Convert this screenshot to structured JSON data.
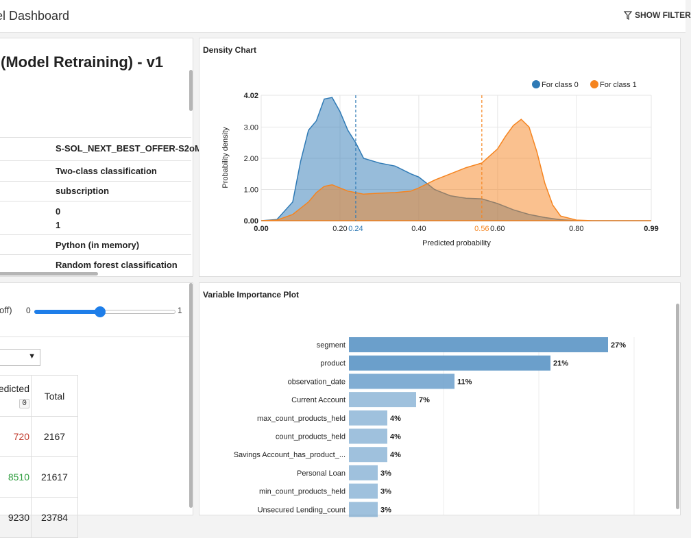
{
  "header": {
    "title": "el Dashboard",
    "filters_label": "SHOW FILTER"
  },
  "model_panel": {
    "title": "(Model Retraining) - v1",
    "rows": [
      "S-SOL_NEXT_BEST_OFFER-S2oM",
      "Two-class classification",
      "subscription",
      "0",
      "1",
      "Python (in memory)",
      "Random forest classification"
    ]
  },
  "density_panel": {
    "title": "Density Chart",
    "legend": [
      "For class 0",
      "For class 1"
    ],
    "ylabel": "Probability density",
    "xlabel": "Predicted probability",
    "xticks": [
      "0.00",
      "0.20",
      "0.40",
      "0.60",
      "0.80",
      "0.99"
    ],
    "yticks": [
      "0.00",
      "1.00",
      "2.00",
      "3.00",
      "4.02"
    ],
    "markers": [
      "0.24",
      "0.56"
    ]
  },
  "metrics_panel": {
    "cutoff_label": "off)",
    "slider_min": "0",
    "slider_max": "1",
    "table": {
      "header_predicted": "edicted",
      "header_badge": "0",
      "header_total": "Total",
      "rows": [
        {
          "pred": "720",
          "total": "2167"
        },
        {
          "pred": "8510",
          "total": "21617"
        },
        {
          "pred": "9230",
          "total": "23784"
        }
      ]
    }
  },
  "varimp_panel": {
    "title": "Variable Importance Plot"
  },
  "colors": {
    "class0": "#2f7ab5",
    "class1": "#f5841f",
    "bar": "#6b9fcb",
    "link": "#1e7ee9",
    "red": "#c0392b",
    "green": "#2e9d3e"
  },
  "chart_data": [
    {
      "type": "area",
      "title": "Density Chart",
      "xlabel": "Predicted probability",
      "ylabel": "Probability density",
      "xlim": [
        0,
        0.99
      ],
      "ylim": [
        0,
        4.02
      ],
      "legend": "top-right",
      "grid": true,
      "vlines": [
        0.24,
        0.56
      ],
      "series": [
        {
          "name": "For class 0",
          "x": [
            0.0,
            0.04,
            0.08,
            0.1,
            0.12,
            0.14,
            0.16,
            0.18,
            0.2,
            0.22,
            0.24,
            0.26,
            0.3,
            0.34,
            0.38,
            0.4,
            0.44,
            0.48,
            0.52,
            0.56,
            0.6,
            0.64,
            0.68,
            0.72,
            0.76,
            0.8,
            0.84,
            0.99
          ],
          "y": [
            0,
            0.04,
            0.6,
            1.9,
            2.9,
            3.2,
            3.9,
            3.95,
            3.5,
            2.9,
            2.5,
            2.0,
            1.85,
            1.75,
            1.5,
            1.4,
            1.0,
            0.8,
            0.72,
            0.7,
            0.55,
            0.35,
            0.2,
            0.1,
            0.03,
            0,
            0,
            0
          ]
        },
        {
          "name": "For class 1",
          "x": [
            0.0,
            0.04,
            0.08,
            0.1,
            0.12,
            0.14,
            0.16,
            0.18,
            0.2,
            0.22,
            0.24,
            0.26,
            0.3,
            0.34,
            0.38,
            0.4,
            0.44,
            0.48,
            0.52,
            0.56,
            0.6,
            0.62,
            0.64,
            0.66,
            0.68,
            0.7,
            0.72,
            0.74,
            0.76,
            0.8,
            0.84,
            0.99
          ],
          "y": [
            0,
            0.02,
            0.2,
            0.4,
            0.6,
            0.9,
            1.1,
            1.15,
            1.05,
            0.95,
            0.9,
            0.85,
            0.88,
            0.9,
            0.95,
            1.05,
            1.3,
            1.5,
            1.7,
            1.85,
            2.3,
            2.7,
            3.05,
            3.25,
            3.0,
            2.2,
            1.2,
            0.5,
            0.15,
            0.02,
            0,
            0
          ]
        }
      ]
    },
    {
      "type": "bar",
      "title": "Variable Importance Plot",
      "orientation": "horizontal",
      "categories": [
        "segment",
        "product",
        "observation_date",
        "Current Account",
        "max_count_products_held",
        "count_products_held",
        "Savings Account_has_product_...",
        "Personal Loan",
        "min_count_products_held",
        "Unsecured Lending_count"
      ],
      "values": [
        27,
        21,
        11,
        7,
        4,
        4,
        4,
        3,
        3,
        3
      ],
      "labels": [
        "27%",
        "21%",
        "11%",
        "7%",
        "4%",
        "4%",
        "4%",
        "3%",
        "3%",
        "3%"
      ]
    }
  ]
}
